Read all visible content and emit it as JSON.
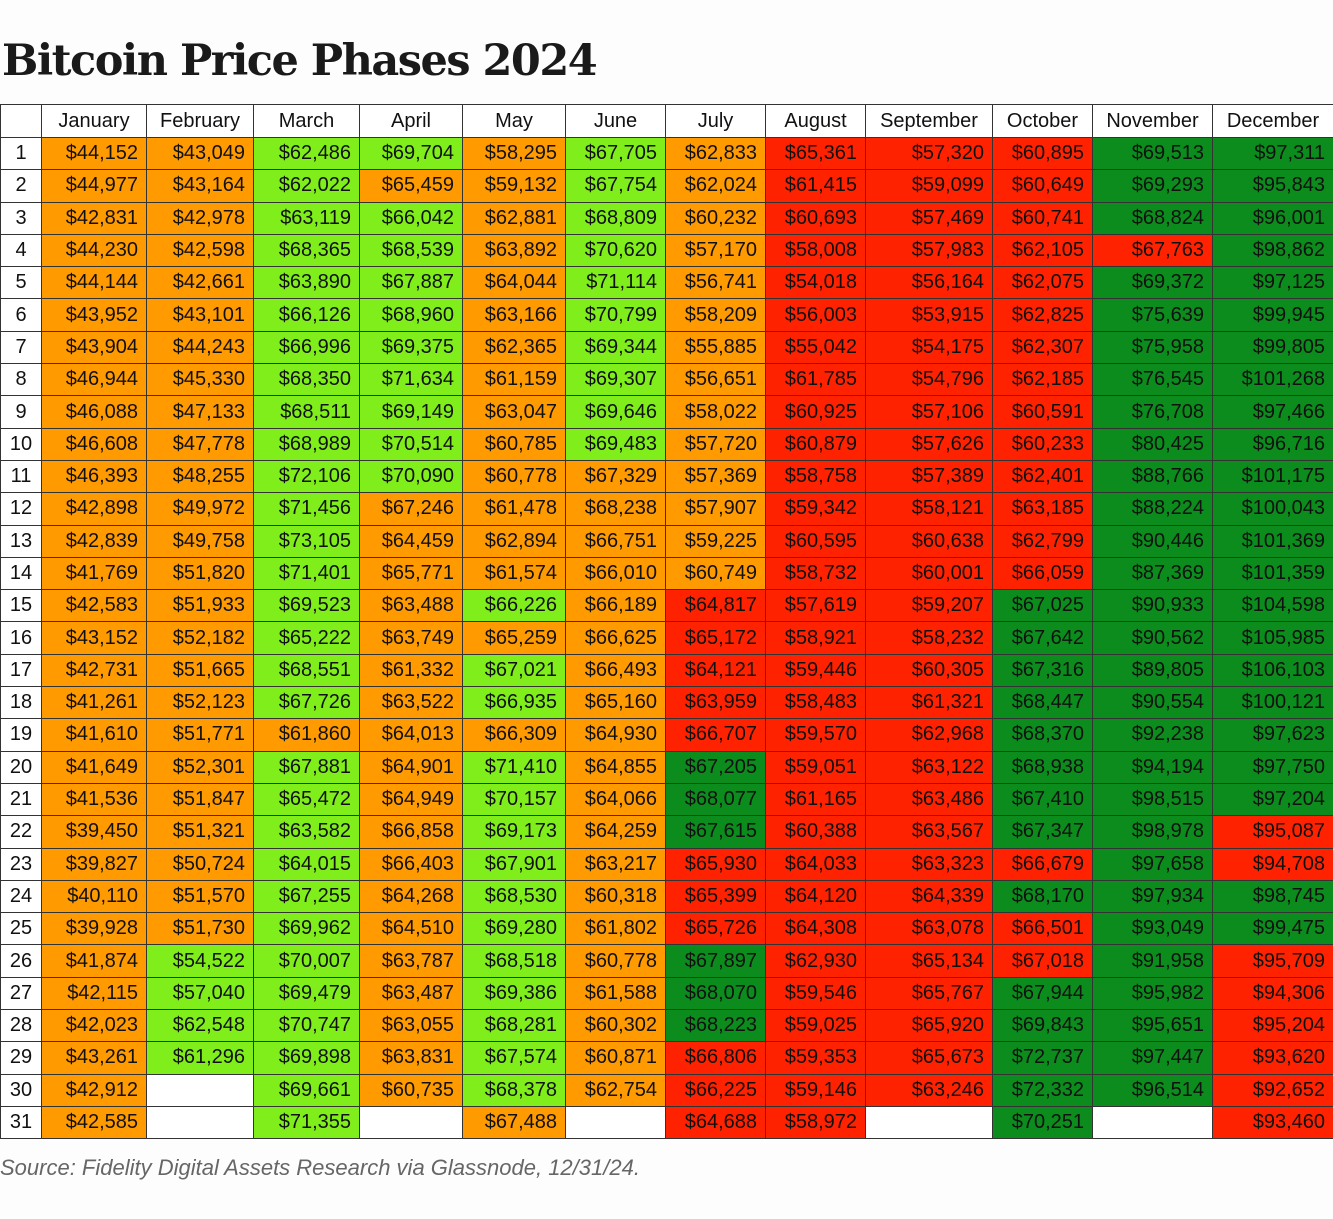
{
  "title": "Bitcoin Price Phases 2024",
  "source": "Source: Fidelity Digital Assets Research via Glassnode, 12/31/24.",
  "chart_data": {
    "type": "table",
    "title": "Bitcoin Price Phases 2024",
    "row_labels": [
      1,
      2,
      3,
      4,
      5,
      6,
      7,
      8,
      9,
      10,
      11,
      12,
      13,
      14,
      15,
      16,
      17,
      18,
      19,
      20,
      21,
      22,
      23,
      24,
      25,
      26,
      27,
      28,
      29,
      30,
      31
    ],
    "phase_colors": {
      "O": "#ff9a00",
      "L": "#7fee1a",
      "R": "#ff2200",
      "G": "#0b8c1c"
    },
    "months": [
      {
        "label": "January",
        "phases": "OOOOOOOOOOOOOOOOOOOOOOOOOOOOOOO",
        "values": [
          "$44,152",
          "$44,977",
          "$42,831",
          "$44,230",
          "$44,144",
          "$43,952",
          "$43,904",
          "$46,944",
          "$46,088",
          "$46,608",
          "$46,393",
          "$42,898",
          "$42,839",
          "$41,769",
          "$42,583",
          "$43,152",
          "$42,731",
          "$41,261",
          "$41,610",
          "$41,649",
          "$41,536",
          "$39,450",
          "$39,827",
          "$40,110",
          "$39,928",
          "$41,874",
          "$42,115",
          "$42,023",
          "$43,261",
          "$42,912",
          "$42,585"
        ]
      },
      {
        "label": "February",
        "phases": "OOOOOOOOOOOOOOOOOOOOOOOOOLLLL--",
        "values": [
          "$43,049",
          "$43,164",
          "$42,978",
          "$42,598",
          "$42,661",
          "$43,101",
          "$44,243",
          "$45,330",
          "$47,133",
          "$47,778",
          "$48,255",
          "$49,972",
          "$49,758",
          "$51,820",
          "$51,933",
          "$52,182",
          "$51,665",
          "$52,123",
          "$51,771",
          "$52,301",
          "$51,847",
          "$51,321",
          "$50,724",
          "$51,570",
          "$51,730",
          "$54,522",
          "$57,040",
          "$62,548",
          "$61,296",
          null,
          null
        ]
      },
      {
        "label": "March",
        "phases": "LLLLLLLLLLLLLLLLLLOLLLLLLLLLLLL",
        "values": [
          "$62,486",
          "$62,022",
          "$63,119",
          "$68,365",
          "$63,890",
          "$66,126",
          "$66,996",
          "$68,350",
          "$68,511",
          "$68,989",
          "$72,106",
          "$71,456",
          "$73,105",
          "$71,401",
          "$69,523",
          "$65,222",
          "$68,551",
          "$67,726",
          "$61,860",
          "$67,881",
          "$65,472",
          "$63,582",
          "$64,015",
          "$67,255",
          "$69,962",
          "$70,007",
          "$69,479",
          "$70,747",
          "$69,898",
          "$69,661",
          "$71,355"
        ]
      },
      {
        "label": "April",
        "phases": "LOLLLLLLLLLOOOOOOOOOOOOOOOOOOO-",
        "values": [
          "$69,704",
          "$65,459",
          "$66,042",
          "$68,539",
          "$67,887",
          "$68,960",
          "$69,375",
          "$71,634",
          "$69,149",
          "$70,514",
          "$70,090",
          "$67,246",
          "$64,459",
          "$65,771",
          "$63,488",
          "$63,749",
          "$61,332",
          "$63,522",
          "$64,013",
          "$64,901",
          "$64,949",
          "$66,858",
          "$66,403",
          "$64,268",
          "$64,510",
          "$63,787",
          "$63,487",
          "$63,055",
          "$63,831",
          "$60,735",
          null
        ]
      },
      {
        "label": "May",
        "phases": "OOOOOOOOOOOOOOLOLLOLLLLLLLLLLLO",
        "values": [
          "$58,295",
          "$59,132",
          "$62,881",
          "$63,892",
          "$64,044",
          "$63,166",
          "$62,365",
          "$61,159",
          "$63,047",
          "$60,785",
          "$60,778",
          "$61,478",
          "$62,894",
          "$61,574",
          "$66,226",
          "$65,259",
          "$67,021",
          "$66,935",
          "$66,309",
          "$71,410",
          "$70,157",
          "$69,173",
          "$67,901",
          "$68,530",
          "$69,280",
          "$68,518",
          "$69,386",
          "$68,281",
          "$67,574",
          "$68,378",
          "$67,488"
        ]
      },
      {
        "label": "June",
        "phases": "LLLLLLLLLLOOOOOOOOOOOOOOOOOOOO-",
        "values": [
          "$67,705",
          "$67,754",
          "$68,809",
          "$70,620",
          "$71,114",
          "$70,799",
          "$69,344",
          "$69,307",
          "$69,646",
          "$69,483",
          "$67,329",
          "$68,238",
          "$66,751",
          "$66,010",
          "$66,189",
          "$66,625",
          "$66,493",
          "$65,160",
          "$64,930",
          "$64,855",
          "$64,066",
          "$64,259",
          "$63,217",
          "$60,318",
          "$61,802",
          "$60,778",
          "$61,588",
          "$60,302",
          "$60,871",
          "$62,754",
          null
        ]
      },
      {
        "label": "July",
        "phases": "OOOOOOOOOOOOOORRRRRGGGRRRGGGRRR",
        "values": [
          "$62,833",
          "$62,024",
          "$60,232",
          "$57,170",
          "$56,741",
          "$58,209",
          "$55,885",
          "$56,651",
          "$58,022",
          "$57,720",
          "$57,369",
          "$57,907",
          "$59,225",
          "$60,749",
          "$64,817",
          "$65,172",
          "$64,121",
          "$63,959",
          "$66,707",
          "$67,205",
          "$68,077",
          "$67,615",
          "$65,930",
          "$65,399",
          "$65,726",
          "$67,897",
          "$68,070",
          "$68,223",
          "$66,806",
          "$66,225",
          "$64,688"
        ]
      },
      {
        "label": "August",
        "phases": "RRRRRRRRRRRRRRRRRRRRRRRRRRRRRRR",
        "values": [
          "$65,361",
          "$61,415",
          "$60,693",
          "$58,008",
          "$54,018",
          "$56,003",
          "$55,042",
          "$61,785",
          "$60,925",
          "$60,879",
          "$58,758",
          "$59,342",
          "$60,595",
          "$58,732",
          "$57,619",
          "$58,921",
          "$59,446",
          "$58,483",
          "$59,570",
          "$59,051",
          "$61,165",
          "$60,388",
          "$64,033",
          "$64,120",
          "$64,308",
          "$62,930",
          "$59,546",
          "$59,025",
          "$59,353",
          "$59,146",
          "$58,972"
        ]
      },
      {
        "label": "September",
        "phases": "RRRRRRRRRRRRRRRRRRRRRRRRRRRRRR-",
        "values": [
          "$57,320",
          "$59,099",
          "$57,469",
          "$57,983",
          "$56,164",
          "$53,915",
          "$54,175",
          "$54,796",
          "$57,106",
          "$57,626",
          "$57,389",
          "$58,121",
          "$60,638",
          "$60,001",
          "$59,207",
          "$58,232",
          "$60,305",
          "$61,321",
          "$62,968",
          "$63,122",
          "$63,486",
          "$63,567",
          "$63,323",
          "$64,339",
          "$63,078",
          "$65,134",
          "$65,767",
          "$65,920",
          "$65,673",
          "$63,246",
          null
        ]
      },
      {
        "label": "October",
        "phases": "RRRRRRRRRRRRRRGGGGGGGGRGRRGGGGG",
        "values": [
          "$60,895",
          "$60,649",
          "$60,741",
          "$62,105",
          "$62,075",
          "$62,825",
          "$62,307",
          "$62,185",
          "$60,591",
          "$60,233",
          "$62,401",
          "$63,185",
          "$62,799",
          "$66,059",
          "$67,025",
          "$67,642",
          "$67,316",
          "$68,447",
          "$68,370",
          "$68,938",
          "$67,410",
          "$67,347",
          "$66,679",
          "$68,170",
          "$66,501",
          "$67,018",
          "$67,944",
          "$69,843",
          "$72,737",
          "$72,332",
          "$70,251"
        ]
      },
      {
        "label": "November",
        "phases": "GGGRGGGGGGGGGGGGGGGGGGGGGGGGGG-",
        "values": [
          "$69,513",
          "$69,293",
          "$68,824",
          "$67,763",
          "$69,372",
          "$75,639",
          "$75,958",
          "$76,545",
          "$76,708",
          "$80,425",
          "$88,766",
          "$88,224",
          "$90,446",
          "$87,369",
          "$90,933",
          "$90,562",
          "$89,805",
          "$90,554",
          "$92,238",
          "$94,194",
          "$98,515",
          "$98,978",
          "$97,658",
          "$97,934",
          "$93,049",
          "$91,958",
          "$95,982",
          "$95,651",
          "$97,447",
          "$96,514",
          null
        ]
      },
      {
        "label": "December",
        "phases": "GGGGGGGGGGGGGGGGGGGGGRRGGRRRRRR",
        "values": [
          "$97,311",
          "$95,843",
          "$96,001",
          "$98,862",
          "$97,125",
          "$99,945",
          "$99,805",
          "$101,268",
          "$97,466",
          "$96,716",
          "$101,175",
          "$100,043",
          "$101,369",
          "$101,359",
          "$104,598",
          "$105,985",
          "$106,103",
          "$100,121",
          "$97,623",
          "$97,750",
          "$97,204",
          "$95,087",
          "$94,708",
          "$98,745",
          "$99,475",
          "$95,709",
          "$94,306",
          "$95,204",
          "$93,620",
          "$92,652",
          "$93,460"
        ]
      }
    ]
  }
}
